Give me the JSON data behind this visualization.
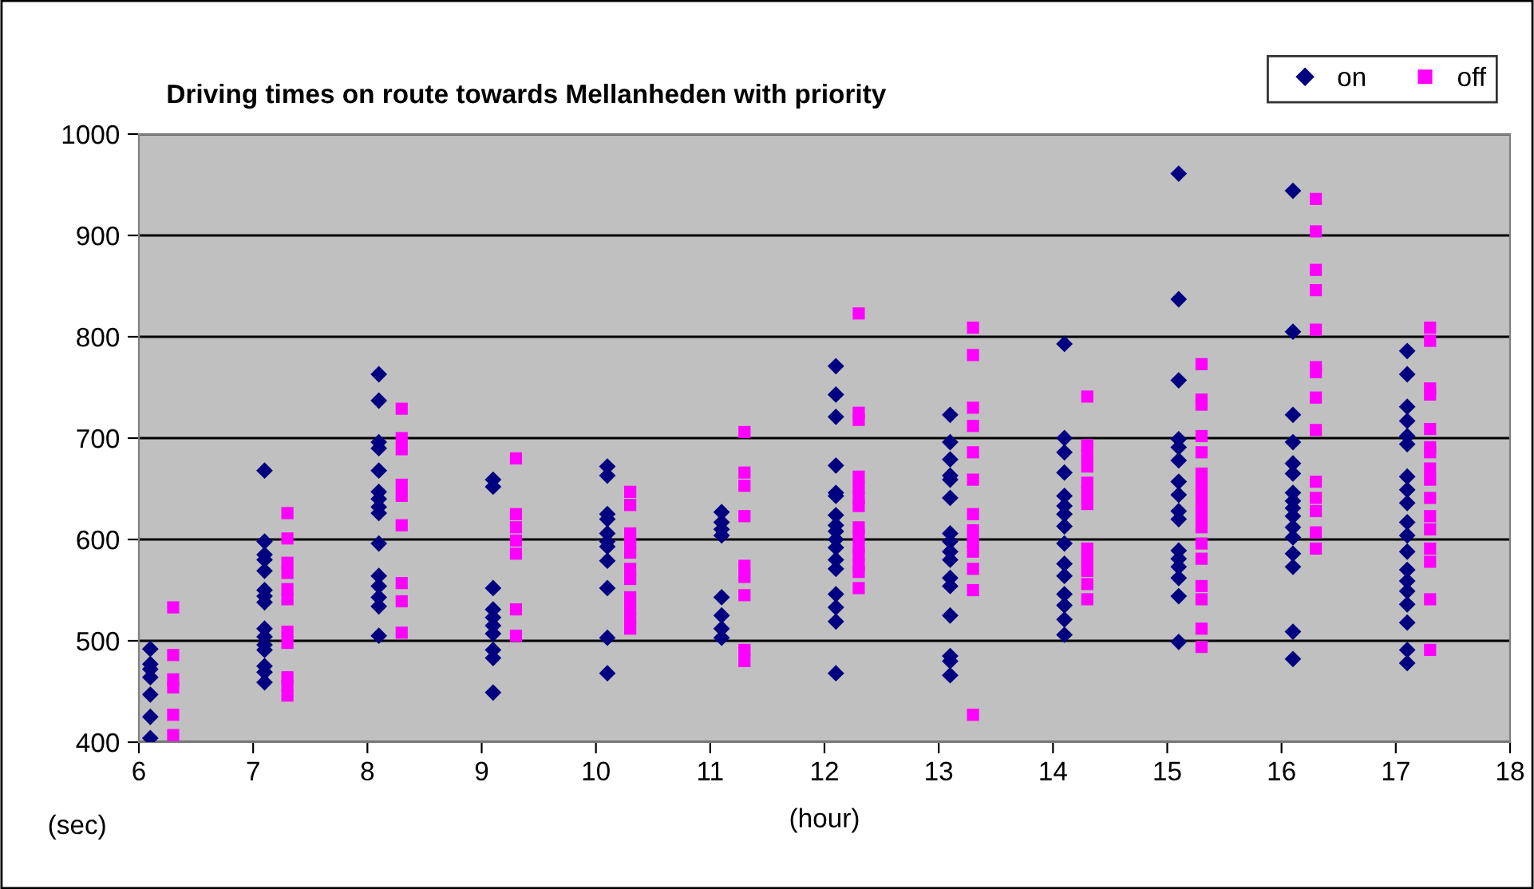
{
  "chart_data": {
    "type": "scatter",
    "title": "Driving times on route towards Mellanheden with priority",
    "xlabel": "(hour)",
    "ylabel": "(sec)",
    "xlim": [
      6,
      18
    ],
    "xticks": [
      6,
      7,
      8,
      9,
      10,
      11,
      12,
      13,
      14,
      15,
      16,
      17,
      18
    ],
    "ylim": [
      400,
      1000
    ],
    "yticks": [
      400,
      500,
      600,
      700,
      800,
      900,
      1000
    ],
    "grid": "y",
    "legend": "top right",
    "series": [
      {
        "name": "on",
        "color": "#000080",
        "marker": "diamond",
        "x": [
          6.1,
          6.1,
          6.1,
          6.1,
          6.1,
          6.1,
          6.1,
          7.1,
          7.1,
          7.1,
          7.1,
          7.1,
          7.1,
          7.1,
          7.1,
          7.1,
          7.1,
          7.1,
          7.1,
          7.1,
          7.1,
          7.1,
          8.1,
          8.1,
          8.1,
          8.1,
          8.1,
          8.1,
          8.1,
          8.1,
          8.1,
          8.1,
          8.1,
          8.1,
          8.1,
          8.1,
          8.1,
          9.1,
          9.1,
          9.1,
          9.1,
          9.1,
          9.1,
          9.1,
          9.1,
          9.1,
          9.1,
          10.1,
          10.1,
          10.1,
          10.1,
          10.1,
          10.1,
          10.1,
          10.1,
          10.1,
          10.1,
          10.1,
          11.1,
          11.1,
          11.1,
          11.1,
          11.1,
          11.1,
          11.1,
          11.1,
          12.1,
          12.1,
          12.1,
          12.1,
          12.1,
          12.1,
          12.1,
          12.1,
          12.1,
          12.1,
          12.1,
          12.1,
          12.1,
          12.1,
          12.1,
          12.1,
          12.1,
          13.1,
          13.1,
          13.1,
          13.1,
          13.1,
          13.1,
          13.1,
          13.1,
          13.1,
          13.1,
          13.1,
          13.1,
          13.1,
          13.1,
          13.1,
          13.1,
          14.1,
          14.1,
          14.1,
          14.1,
          14.1,
          14.1,
          14.1,
          14.1,
          14.1,
          14.1,
          14.1,
          14.1,
          14.1,
          14.1,
          14.1,
          15.1,
          15.1,
          15.1,
          15.1,
          15.1,
          15.1,
          15.1,
          15.1,
          15.1,
          15.1,
          15.1,
          15.1,
          15.1,
          15.1,
          15.1,
          15.1,
          16.1,
          16.1,
          16.1,
          16.1,
          16.1,
          16.1,
          16.1,
          16.1,
          16.1,
          16.1,
          16.1,
          16.1,
          16.1,
          16.1,
          16.1,
          16.1,
          17.1,
          17.1,
          17.1,
          17.1,
          17.1,
          17.1,
          17.1,
          17.1,
          17.1,
          17.1,
          17.1,
          17.1,
          17.1,
          17.1,
          17.1,
          17.1,
          17.1,
          17.1,
          17.1
        ],
        "values": [
          492,
          477,
          472,
          464,
          447,
          425,
          404,
          668,
          598,
          585,
          580,
          569,
          550,
          544,
          538,
          512,
          504,
          496,
          491,
          475,
          469,
          459,
          763,
          737,
          696,
          690,
          668,
          647,
          640,
          632,
          626,
          596,
          564,
          554,
          543,
          534,
          505,
          659,
          652,
          552,
          531,
          523,
          515,
          507,
          491,
          483,
          449,
          672,
          663,
          625,
          620,
          606,
          598,
          593,
          579,
          552,
          503,
          468,
          627,
          617,
          610,
          604,
          543,
          525,
          512,
          503,
          771,
          743,
          721,
          673,
          646,
          643,
          624,
          614,
          608,
          600,
          592,
          580,
          571,
          546,
          533,
          519,
          468,
          723,
          696,
          679,
          663,
          659,
          641,
          606,
          598,
          588,
          580,
          562,
          554,
          525,
          485,
          480,
          466,
          793,
          700,
          686,
          666,
          643,
          633,
          625,
          613,
          596,
          576,
          564,
          546,
          535,
          521,
          506,
          961,
          837,
          757,
          699,
          691,
          678,
          657,
          644,
          628,
          620,
          589,
          581,
          573,
          562,
          544,
          499,
          944,
          805,
          723,
          696,
          675,
          665,
          646,
          638,
          631,
          623,
          612,
          602,
          586,
          573,
          509,
          482,
          786,
          763,
          731,
          717,
          702,
          694,
          662,
          649,
          636,
          617,
          604,
          588,
          570,
          559,
          549,
          536,
          518,
          491,
          478
        ]
      },
      {
        "name": "off",
        "color": "#ff00ff",
        "marker": "square",
        "x": [
          6.3,
          6.3,
          6.3,
          6.3,
          6.3,
          6.3,
          7.3,
          7.3,
          7.3,
          7.3,
          7.3,
          7.3,
          7.3,
          7.3,
          7.3,
          7.3,
          7.3,
          8.3,
          8.3,
          8.3,
          8.3,
          8.3,
          8.3,
          8.3,
          8.3,
          8.3,
          9.3,
          9.3,
          9.3,
          9.3,
          9.3,
          9.3,
          9.3,
          10.3,
          10.3,
          10.3,
          10.3,
          10.3,
          10.3,
          10.3,
          10.3,
          10.3,
          10.3,
          10.3,
          11.3,
          11.3,
          11.3,
          11.3,
          11.3,
          11.3,
          11.3,
          11.3,
          11.3,
          12.3,
          12.3,
          12.3,
          12.3,
          12.3,
          12.3,
          12.3,
          12.3,
          12.3,
          12.3,
          12.3,
          12.3,
          12.3,
          12.3,
          13.3,
          13.3,
          13.3,
          13.3,
          13.3,
          13.3,
          13.3,
          13.3,
          13.3,
          13.3,
          13.3,
          13.3,
          13.3,
          14.3,
          14.3,
          14.3,
          14.3,
          14.3,
          14.3,
          14.3,
          14.3,
          14.3,
          14.3,
          14.3,
          14.3,
          15.3,
          15.3,
          15.3,
          15.3,
          15.3,
          15.3,
          15.3,
          15.3,
          15.3,
          15.3,
          15.3,
          15.3,
          15.3,
          15.3,
          15.3,
          15.3,
          15.3,
          16.3,
          16.3,
          16.3,
          16.3,
          16.3,
          16.3,
          16.3,
          16.3,
          16.3,
          16.3,
          16.3,
          16.3,
          16.3,
          16.3,
          17.3,
          17.3,
          17.3,
          17.3,
          17.3,
          17.3,
          17.3,
          17.3,
          17.3,
          17.3,
          17.3,
          17.3,
          17.3,
          17.3,
          17.3,
          17.3
        ],
        "values": [
          533,
          486,
          462,
          454,
          427,
          407,
          626,
          601,
          577,
          567,
          551,
          541,
          509,
          498,
          464,
          456,
          446,
          729,
          700,
          689,
          654,
          643,
          614,
          557,
          539,
          508,
          680,
          625,
          612,
          599,
          586,
          531,
          505,
          647,
          634,
          606,
          596,
          587,
          571,
          561,
          543,
          532,
          522,
          512,
          706,
          666,
          653,
          623,
          574,
          563,
          545,
          491,
          480,
          823,
          725,
          718,
          662,
          651,
          641,
          633,
          612,
          604,
          593,
          585,
          575,
          568,
          552,
          809,
          782,
          730,
          712,
          686,
          659,
          625,
          609,
          598,
          588,
          571,
          550,
          427,
          741,
          693,
          683,
          672,
          656,
          646,
          635,
          591,
          580,
          569,
          556,
          541,
          773,
          738,
          733,
          702,
          686,
          665,
          654,
          644,
          633,
          623,
          612,
          596,
          581,
          554,
          541,
          512,
          494,
          936,
          904,
          866,
          846,
          807,
          770,
          765,
          740,
          708,
          657,
          641,
          628,
          607,
          591,
          809,
          796,
          749,
          743,
          709,
          691,
          686,
          670,
          659,
          641,
          623,
          610,
          591,
          578,
          541,
          491
        ]
      }
    ]
  }
}
